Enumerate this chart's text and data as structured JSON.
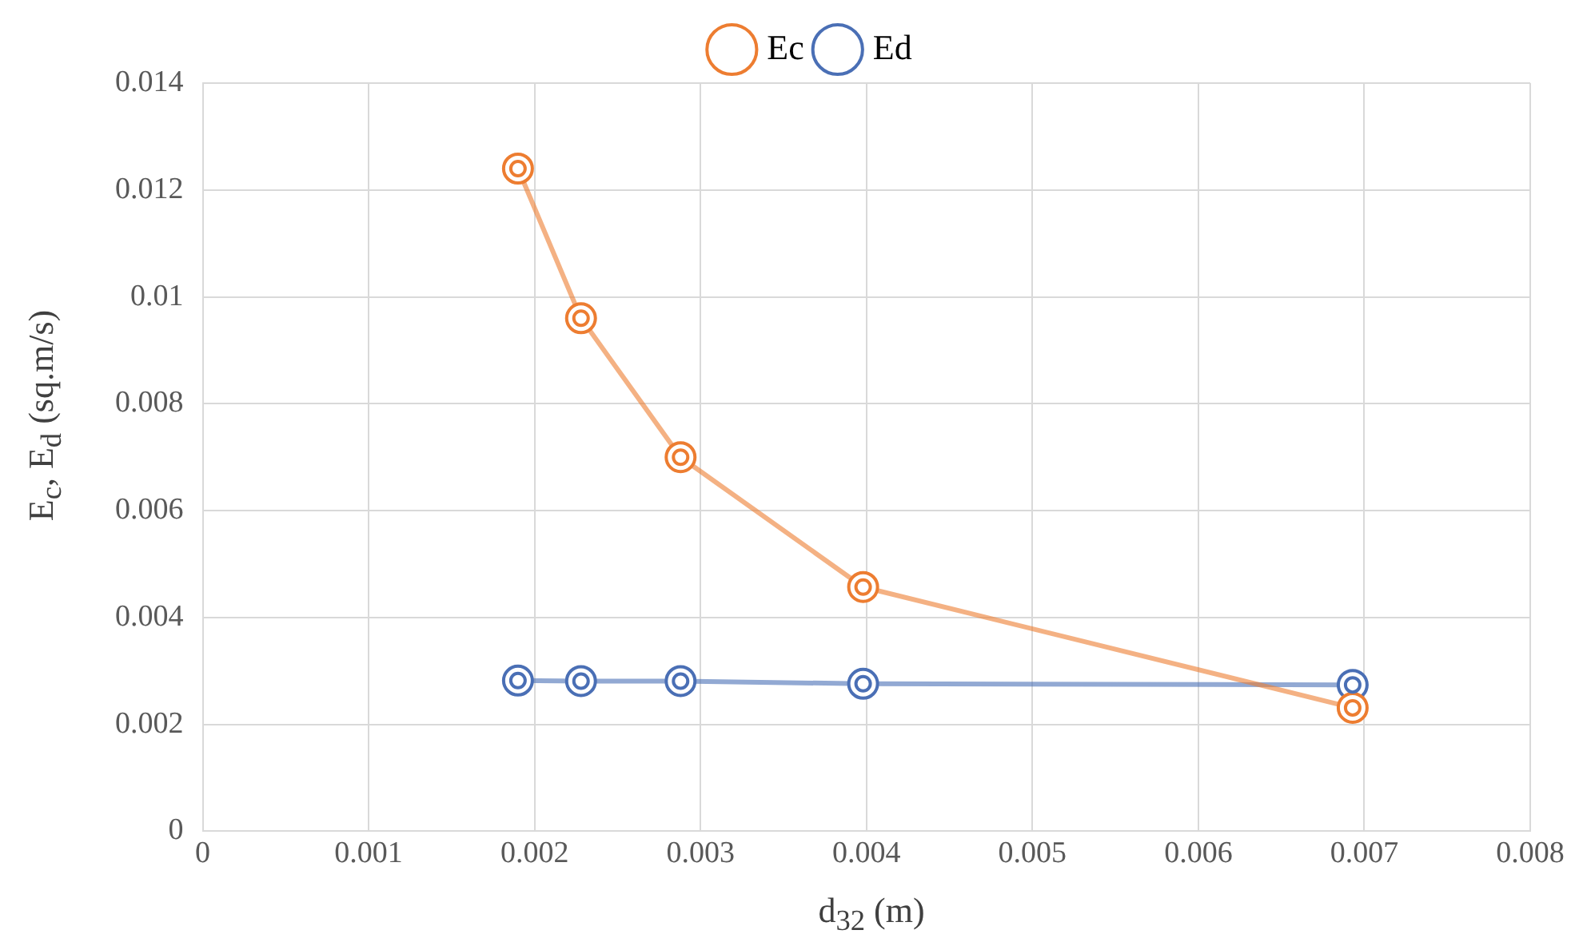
{
  "chart_data": {
    "type": "line",
    "xlabel": "d$_{32}$ (m)",
    "ylabel": "E$_{c}$, E$_{d}$ (sq.m/s)",
    "x": [
      0.0019,
      0.00228,
      0.00288,
      0.00398,
      0.00693
    ],
    "series": [
      {
        "name": "Ec",
        "color": "#ed7d31",
        "values": [
          0.0124,
          0.0096,
          0.007,
          0.00457,
          0.00231
        ]
      },
      {
        "name": "Ed",
        "color": "#4a6fb5",
        "values": [
          0.00282,
          0.00281,
          0.00281,
          0.00276,
          0.00274
        ]
      }
    ],
    "xlim": [
      0,
      0.008
    ],
    "xticks": [
      0,
      0.001,
      0.002,
      0.003,
      0.004,
      0.005,
      0.006,
      0.007,
      0.008
    ],
    "ylim": [
      0,
      0.014
    ],
    "yticks": [
      0,
      0.002,
      0.004,
      0.006,
      0.008,
      0.01,
      0.012,
      0.014
    ],
    "grid": true,
    "legend": "top",
    "marker": "circle",
    "line_style": "solid"
  }
}
